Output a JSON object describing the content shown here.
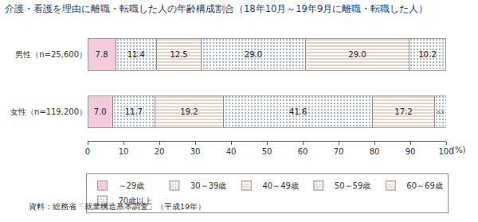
{
  "chart_data": {
    "type": "bar",
    "title": "介護・看護を理由に離職・転職した人の年齢構成割合（18年10月～19年9月に離職・転職した人）",
    "orientation": "horizontal",
    "stacked": true,
    "data_labels": true,
    "grid": false,
    "legend": "bottom",
    "xlabel": "(%)",
    "xlim": [
      0,
      100
    ],
    "xticks": [
      0,
      10,
      20,
      30,
      40,
      50,
      60,
      70,
      80,
      90,
      100
    ],
    "categories": [
      "男性（n=25,600）",
      "女性（n=119,200）"
    ],
    "series": [
      {
        "name": "～29歳",
        "color": "#f4cadc",
        "marker": "solid",
        "values": [
          7.8,
          7.0
        ],
        "value_labels": [
          "7.8",
          "7.0"
        ]
      },
      {
        "name": "30～39歳",
        "color": "#d6e9f7",
        "marker": "dots",
        "values": [
          11.4,
          11.7
        ],
        "value_labels": [
          "11.4",
          "11.7"
        ]
      },
      {
        "name": "40～49歳",
        "color": "#f5bba9",
        "marker": "hlines",
        "values": [
          12.5,
          19.2
        ],
        "value_labels": [
          "12.5",
          "19.2"
        ]
      },
      {
        "name": "50～59歳",
        "color": "#e6f3b8",
        "marker": "dots",
        "values": [
          29.0,
          41.6
        ],
        "value_labels": [
          "29.0",
          "41.6"
        ]
      },
      {
        "name": "60～69歳",
        "color": "#fddcaa",
        "marker": "hlines",
        "values": [
          29.0,
          17.2
        ],
        "value_labels": [
          "29.0",
          "17.2"
        ]
      },
      {
        "name": "70歳以上",
        "color": "#cfeae7",
        "marker": "dots",
        "values": [
          10.2,
          3.3
        ],
        "value_labels": [
          "10.2",
          "3.3"
        ]
      }
    ],
    "source": "資料：総務省「就業構造基本調査」（平成19年）"
  }
}
